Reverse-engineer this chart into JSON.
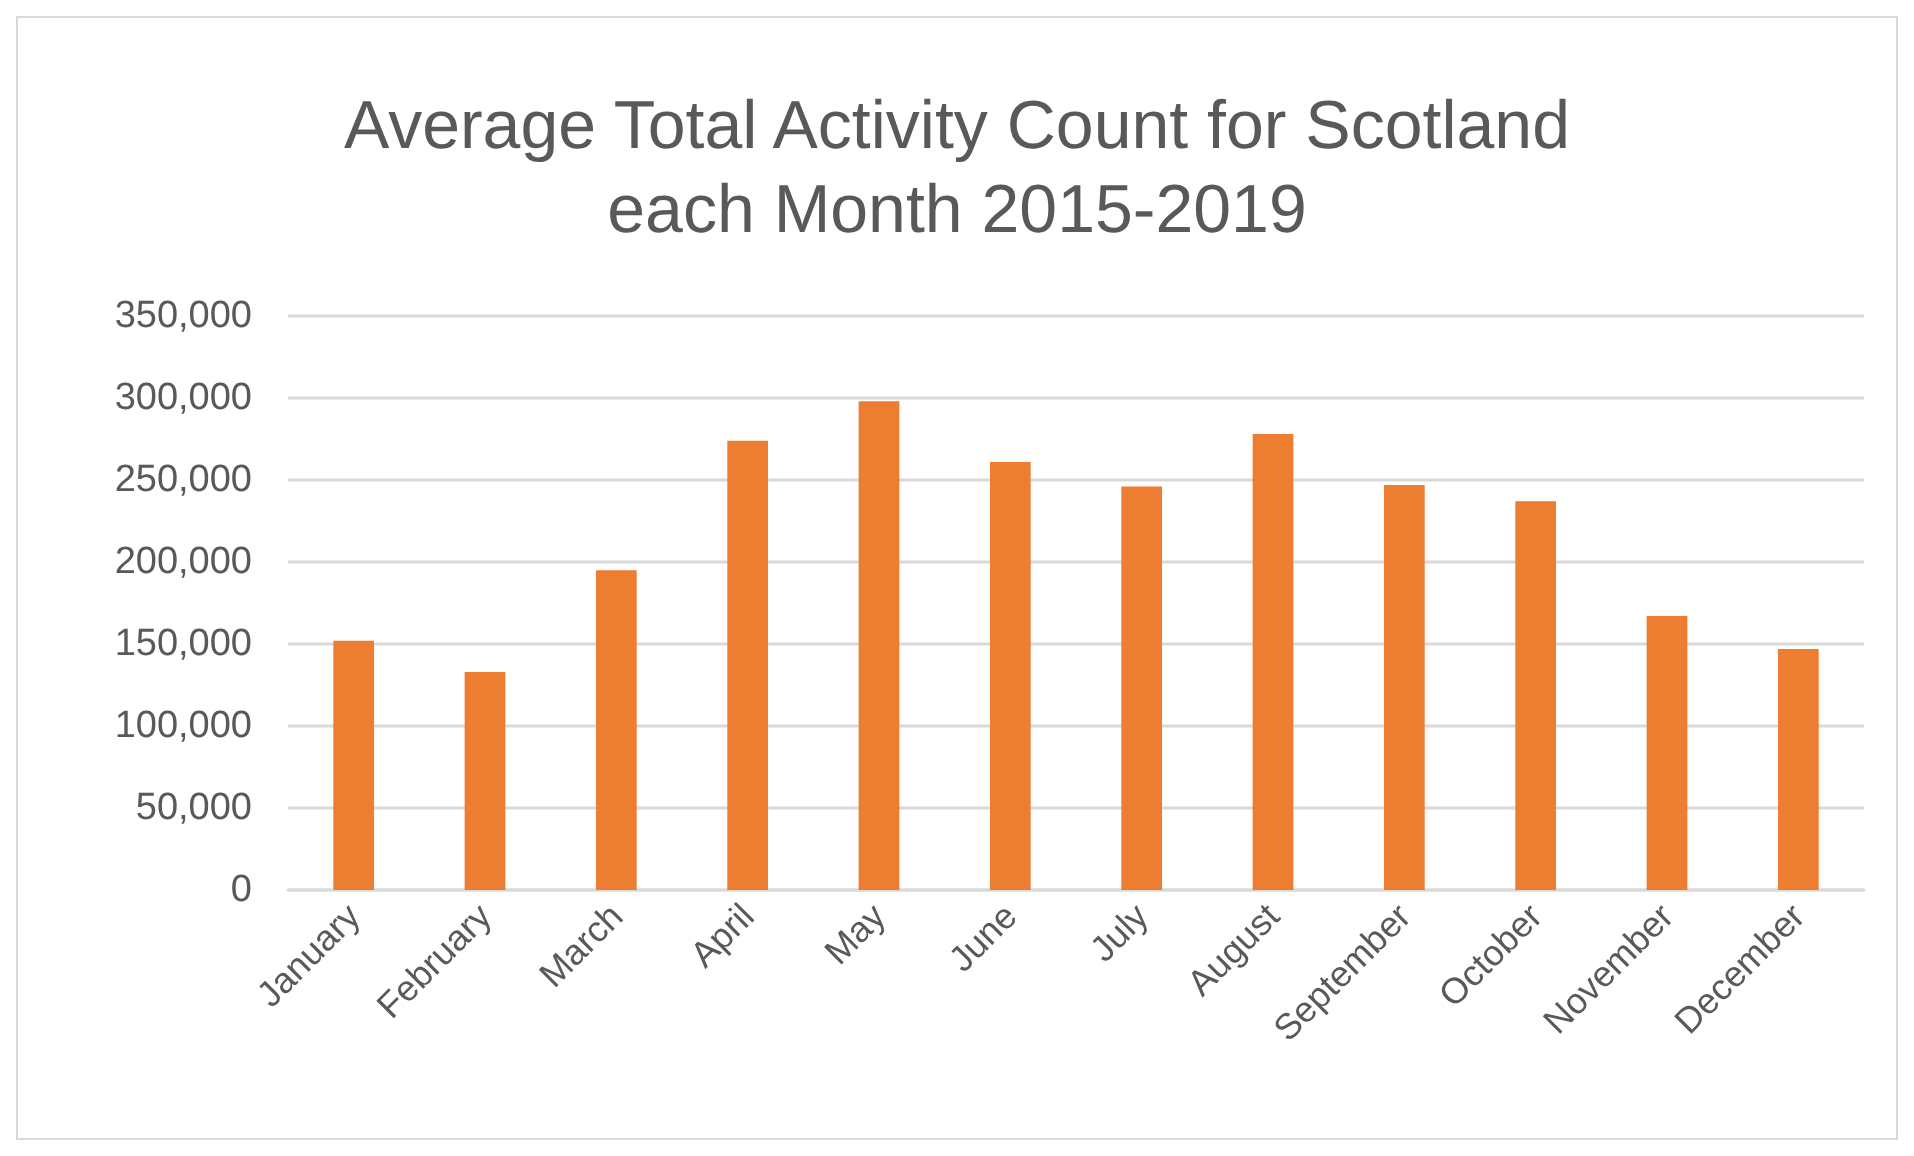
{
  "chart_data": {
    "type": "bar",
    "title": "Average Total Activity Count for Scotland\neach Month 2015-2019",
    "categories": [
      "January",
      "February",
      "March",
      "April",
      "May",
      "June",
      "July",
      "August",
      "September",
      "October",
      "November",
      "December"
    ],
    "values": [
      152000,
      133000,
      195000,
      274000,
      298000,
      261000,
      246000,
      278000,
      247000,
      237000,
      167000,
      147000
    ],
    "color": "#ed7d31",
    "ylim": [
      0,
      350000
    ],
    "yticks": [
      0,
      {
        "value": 50000,
        "label": "50,000"
      },
      {
        "value": 100000,
        "label": "100,000"
      },
      {
        "value": 150000,
        "label": "150,000"
      },
      {
        "value": 200000,
        "label": "200,000"
      },
      {
        "value": 250000,
        "label": "250,000"
      },
      {
        "value": 300000,
        "label": "300,000"
      },
      {
        "value": 350000,
        "label": "350,000"
      }
    ],
    "grid": "y"
  }
}
